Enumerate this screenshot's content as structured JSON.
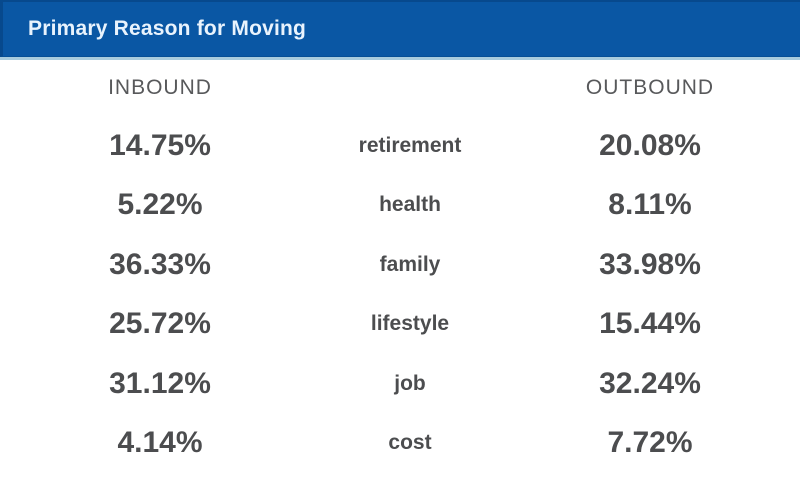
{
  "window": {
    "title": "Primary Reason for Moving"
  },
  "columns": {
    "inbound_label": "INBOUND",
    "outbound_label": "OUTBOUND"
  },
  "rows": [
    {
      "inbound": "14.75%",
      "reason": "retirement",
      "outbound": "20.08%"
    },
    {
      "inbound": "5.22%",
      "reason": "health",
      "outbound": "8.11%"
    },
    {
      "inbound": "36.33%",
      "reason": "family",
      "outbound": "33.98%"
    },
    {
      "inbound": "25.72%",
      "reason": "lifestyle",
      "outbound": "15.44%"
    },
    {
      "inbound": "31.12%",
      "reason": "job",
      "outbound": "32.24%"
    },
    {
      "inbound": "4.14%",
      "reason": "cost",
      "outbound": "7.72%"
    }
  ],
  "colors": {
    "header_bg": "#0A57A4",
    "header_edge": "#07498D",
    "header_edge_bottom": "#064F96",
    "header_text": "#E9F3FD",
    "divider": "#A9CCDE",
    "heading_text": "#58595B",
    "value_text": "#4C4D4F"
  },
  "chart_data": {
    "type": "table",
    "title": "Primary Reason for Moving",
    "categories": [
      "retirement",
      "health",
      "family",
      "lifestyle",
      "job",
      "cost"
    ],
    "series": [
      {
        "name": "INBOUND",
        "values": [
          14.75,
          5.22,
          36.33,
          25.72,
          31.12,
          4.14
        ]
      },
      {
        "name": "OUTBOUND",
        "values": [
          20.08,
          8.11,
          33.98,
          15.44,
          32.24,
          7.72
        ]
      }
    ],
    "value_format": "percent",
    "layout": "inbound-left, reason-center, outbound-right"
  }
}
